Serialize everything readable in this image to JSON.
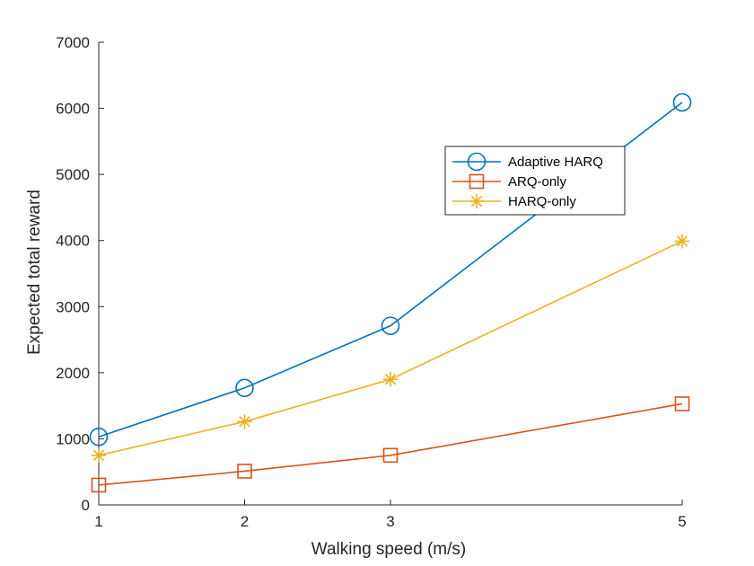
{
  "chart_data": {
    "type": "line",
    "title": "",
    "xlabel": "Walking speed (m/s)",
    "ylabel": "Expected total reward",
    "x": [
      1,
      2,
      3,
      5
    ],
    "xticks": [
      "1",
      "2",
      "3",
      "5"
    ],
    "yticks": [
      "0",
      "1000",
      "2000",
      "3000",
      "4000",
      "5000",
      "6000",
      "7000"
    ],
    "xlim": [
      1,
      5
    ],
    "ylim": [
      0,
      7000
    ],
    "grid": false,
    "legend_position": "upper-right inside axes",
    "series": [
      {
        "name": "Adaptive HARQ",
        "values": [
          1030,
          1770,
          2710,
          6090
        ],
        "color": "#0072BD",
        "marker": "circle"
      },
      {
        "name": "ARQ-only",
        "values": [
          300,
          510,
          750,
          1530
        ],
        "color": "#D95319",
        "marker": "square"
      },
      {
        "name": "HARQ-only",
        "values": [
          750,
          1260,
          1900,
          3990
        ],
        "color": "#EDB120",
        "marker": "asterisk"
      }
    ]
  }
}
